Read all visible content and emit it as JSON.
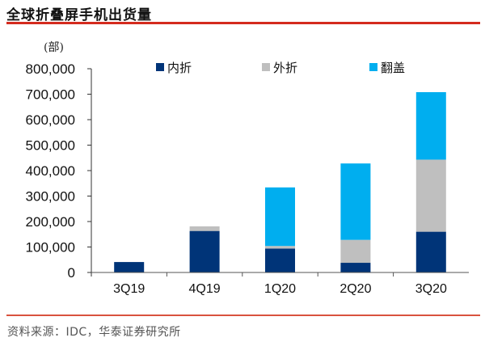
{
  "header": {
    "title": "全球折叠屏手机出货量"
  },
  "footer": {
    "source": "资料来源：IDC，华泰证券研究所"
  },
  "chart_data": {
    "type": "bar",
    "stacked": true,
    "title": "全球折叠屏手机出货量",
    "unit_label": "(部)",
    "xlabel": "",
    "ylabel": "(部)",
    "ylim": [
      0,
      800000
    ],
    "yticks": [
      0,
      100000,
      200000,
      300000,
      400000,
      500000,
      600000,
      700000,
      800000
    ],
    "ytick_labels": [
      "0",
      "100,000",
      "200,000",
      "300,000",
      "400,000",
      "500,000",
      "600,000",
      "700,000",
      "800,000"
    ],
    "categories": [
      "3Q19",
      "4Q19",
      "1Q20",
      "2Q20",
      "3Q20"
    ],
    "grid": false,
    "legend_position": "top",
    "series": [
      {
        "name": "内折",
        "color": "#003478",
        "values": [
          41000,
          163000,
          94000,
          38000,
          160000
        ]
      },
      {
        "name": "外折",
        "color": "#bfbfbf",
        "values": [
          0,
          18000,
          10000,
          90000,
          283000
        ]
      },
      {
        "name": "翻盖",
        "color": "#00aeef",
        "values": [
          0,
          0,
          230000,
          300000,
          265000
        ]
      }
    ]
  }
}
